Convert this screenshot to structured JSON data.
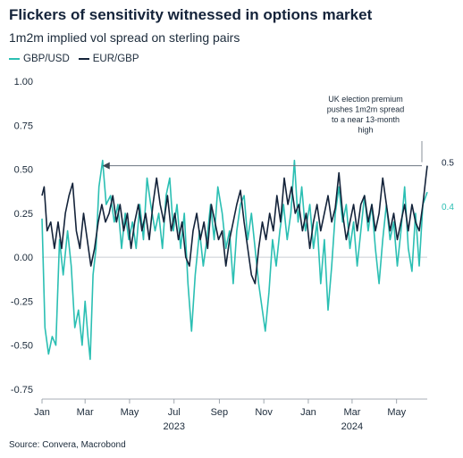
{
  "chart_data": {
    "type": "line",
    "title": "Flickers of sensitivity witnessed in options market",
    "subtitle": "1m2m implied vol spread on sterling pairs",
    "ylim": [
      -0.75,
      1.0
    ],
    "yticks": [
      "1.00",
      "0.75",
      "0.50",
      "0.25",
      "0.00",
      "-0.25",
      "-0.50",
      "-0.75"
    ],
    "x_start": "2023-01-01",
    "x_end": "2024-06-12",
    "xticks": [
      {
        "label": "Jan",
        "date": "2023-01-01"
      },
      {
        "label": "Mar",
        "date": "2023-03-01"
      },
      {
        "label": "May",
        "date": "2023-05-01"
      },
      {
        "label": "Jul",
        "date": "2023-07-01"
      },
      {
        "label": "Sep",
        "date": "2023-09-01"
      },
      {
        "label": "Nov",
        "date": "2023-11-01"
      },
      {
        "label": "Jan",
        "date": "2024-01-01"
      },
      {
        "label": "Mar",
        "date": "2024-03-01"
      },
      {
        "label": "May",
        "date": "2024-05-01"
      }
    ],
    "year_labels": [
      {
        "label": "2023",
        "date": "2023-07-01"
      },
      {
        "label": "2024",
        "date": "2024-03-01"
      }
    ],
    "series": [
      {
        "name": "GBP/USD",
        "color": "#2bbfb3",
        "end_label": "0.4",
        "points": [
          [
            "2023-01-01",
            0.22
          ],
          [
            "2023-01-05",
            -0.4
          ],
          [
            "2023-01-10",
            -0.55
          ],
          [
            "2023-01-15",
            -0.45
          ],
          [
            "2023-01-20",
            -0.5
          ],
          [
            "2023-01-25",
            0.1
          ],
          [
            "2023-01-30",
            -0.1
          ],
          [
            "2023-02-05",
            0.15
          ],
          [
            "2023-02-10",
            -0.05
          ],
          [
            "2023-02-15",
            -0.4
          ],
          [
            "2023-02-20",
            -0.3
          ],
          [
            "2023-02-25",
            -0.5
          ],
          [
            "2023-03-01",
            -0.25
          ],
          [
            "2023-03-05",
            -0.45
          ],
          [
            "2023-03-08",
            -0.58
          ],
          [
            "2023-03-12",
            -0.1
          ],
          [
            "2023-03-16",
            0.05
          ],
          [
            "2023-03-20",
            0.4
          ],
          [
            "2023-03-25",
            0.55
          ],
          [
            "2023-03-30",
            0.3
          ],
          [
            "2023-04-05",
            0.35
          ],
          [
            "2023-04-10",
            0.2
          ],
          [
            "2023-04-15",
            0.3
          ],
          [
            "2023-04-20",
            0.05
          ],
          [
            "2023-04-25",
            0.25
          ],
          [
            "2023-04-30",
            0.1
          ],
          [
            "2023-05-05",
            0.2
          ],
          [
            "2023-05-10",
            0.05
          ],
          [
            "2023-05-15",
            0.3
          ],
          [
            "2023-05-20",
            0.1
          ],
          [
            "2023-05-25",
            0.45
          ],
          [
            "2023-05-30",
            0.3
          ],
          [
            "2023-06-05",
            0.15
          ],
          [
            "2023-06-10",
            0.25
          ],
          [
            "2023-06-15",
            0.05
          ],
          [
            "2023-06-20",
            0.35
          ],
          [
            "2023-06-25",
            0.45
          ],
          [
            "2023-06-30",
            0.15
          ],
          [
            "2023-07-05",
            0.3
          ],
          [
            "2023-07-10",
            0.05
          ],
          [
            "2023-07-15",
            0.25
          ],
          [
            "2023-07-20",
            -0.15
          ],
          [
            "2023-07-25",
            -0.42
          ],
          [
            "2023-07-30",
            -0.1
          ],
          [
            "2023-08-05",
            0.15
          ],
          [
            "2023-08-10",
            -0.05
          ],
          [
            "2023-08-15",
            0.1
          ],
          [
            "2023-08-20",
            0.3
          ],
          [
            "2023-08-25",
            0.1
          ],
          [
            "2023-08-30",
            0.4
          ],
          [
            "2023-09-05",
            0.25
          ],
          [
            "2023-09-10",
            0.05
          ],
          [
            "2023-09-15",
            0.15
          ],
          [
            "2023-09-20",
            -0.15
          ],
          [
            "2023-09-25",
            0.15
          ],
          [
            "2023-09-30",
            0.3
          ],
          [
            "2023-10-05",
            0.35
          ],
          [
            "2023-10-10",
            0.1
          ],
          [
            "2023-10-15",
            0.25
          ],
          [
            "2023-10-20",
            0.05
          ],
          [
            "2023-10-25",
            -0.15
          ],
          [
            "2023-10-30",
            -0.3
          ],
          [
            "2023-11-03",
            -0.42
          ],
          [
            "2023-11-08",
            -0.2
          ],
          [
            "2023-11-13",
            0.1
          ],
          [
            "2023-11-18",
            -0.05
          ],
          [
            "2023-11-23",
            0.15
          ],
          [
            "2023-11-28",
            0.3
          ],
          [
            "2023-12-03",
            0.1
          ],
          [
            "2023-12-08",
            0.25
          ],
          [
            "2023-12-13",
            0.55
          ],
          [
            "2023-12-18",
            0.2
          ],
          [
            "2023-12-23",
            0.4
          ],
          [
            "2023-12-28",
            0.15
          ],
          [
            "2024-01-03",
            0.3
          ],
          [
            "2024-01-08",
            0.05
          ],
          [
            "2024-01-13",
            0.2
          ],
          [
            "2024-01-18",
            -0.15
          ],
          [
            "2024-01-23",
            0.1
          ],
          [
            "2024-01-28",
            -0.3
          ],
          [
            "2024-02-02",
            -0.05
          ],
          [
            "2024-02-07",
            0.25
          ],
          [
            "2024-02-12",
            0.4
          ],
          [
            "2024-02-17",
            0.2
          ],
          [
            "2024-02-22",
            0.3
          ],
          [
            "2024-02-27",
            0.05
          ],
          [
            "2024-03-03",
            0.2
          ],
          [
            "2024-03-08",
            -0.05
          ],
          [
            "2024-03-13",
            0.15
          ],
          [
            "2024-03-18",
            0.35
          ],
          [
            "2024-03-23",
            0.15
          ],
          [
            "2024-03-28",
            0.3
          ],
          [
            "2024-04-02",
            0.05
          ],
          [
            "2024-04-07",
            -0.15
          ],
          [
            "2024-04-12",
            0.1
          ],
          [
            "2024-04-17",
            0.3
          ],
          [
            "2024-04-22",
            0.1
          ],
          [
            "2024-04-27",
            0.2
          ],
          [
            "2024-05-02",
            -0.05
          ],
          [
            "2024-05-07",
            0.15
          ],
          [
            "2024-05-12",
            0.4
          ],
          [
            "2024-05-17",
            0.05
          ],
          [
            "2024-05-22",
            -0.08
          ],
          [
            "2024-05-27",
            0.25
          ],
          [
            "2024-06-01",
            -0.05
          ],
          [
            "2024-06-06",
            0.3
          ],
          [
            "2024-06-12",
            0.37
          ]
        ]
      },
      {
        "name": "EUR/GBP",
        "color": "#14233a",
        "end_label": "0.5",
        "points": [
          [
            "2023-01-01",
            0.35
          ],
          [
            "2023-01-04",
            0.4
          ],
          [
            "2023-01-08",
            0.15
          ],
          [
            "2023-01-13",
            0.2
          ],
          [
            "2023-01-18",
            0.05
          ],
          [
            "2023-01-23",
            0.2
          ],
          [
            "2023-01-28",
            0.05
          ],
          [
            "2023-02-02",
            0.25
          ],
          [
            "2023-02-07",
            0.35
          ],
          [
            "2023-02-12",
            0.42
          ],
          [
            "2023-02-17",
            0.15
          ],
          [
            "2023-02-22",
            0.05
          ],
          [
            "2023-02-27",
            0.25
          ],
          [
            "2023-03-04",
            0.1
          ],
          [
            "2023-03-09",
            -0.05
          ],
          [
            "2023-03-14",
            0.05
          ],
          [
            "2023-03-19",
            0.2
          ],
          [
            "2023-03-24",
            0.3
          ],
          [
            "2023-03-29",
            0.2
          ],
          [
            "2023-04-03",
            0.25
          ],
          [
            "2023-04-08",
            0.35
          ],
          [
            "2023-04-13",
            0.2
          ],
          [
            "2023-04-18",
            0.3
          ],
          [
            "2023-04-23",
            0.15
          ],
          [
            "2023-04-28",
            0.25
          ],
          [
            "2023-05-03",
            0.05
          ],
          [
            "2023-05-08",
            0.2
          ],
          [
            "2023-05-13",
            0.3
          ],
          [
            "2023-05-18",
            0.15
          ],
          [
            "2023-05-23",
            0.25
          ],
          [
            "2023-05-28",
            0.1
          ],
          [
            "2023-06-02",
            0.3
          ],
          [
            "2023-06-07",
            0.45
          ],
          [
            "2023-06-12",
            0.3
          ],
          [
            "2023-06-17",
            0.2
          ],
          [
            "2023-06-22",
            0.35
          ],
          [
            "2023-06-27",
            0.15
          ],
          [
            "2023-07-02",
            0.25
          ],
          [
            "2023-07-07",
            0.1
          ],
          [
            "2023-07-12",
            0.2
          ],
          [
            "2023-07-17",
            0.0
          ],
          [
            "2023-07-22",
            -0.05
          ],
          [
            "2023-07-27",
            0.15
          ],
          [
            "2023-08-01",
            0.25
          ],
          [
            "2023-08-06",
            0.1
          ],
          [
            "2023-08-11",
            0.2
          ],
          [
            "2023-08-16",
            0.05
          ],
          [
            "2023-08-21",
            0.3
          ],
          [
            "2023-08-26",
            0.2
          ],
          [
            "2023-08-31",
            0.1
          ],
          [
            "2023-09-05",
            0.15
          ],
          [
            "2023-09-10",
            -0.05
          ],
          [
            "2023-09-15",
            0.1
          ],
          [
            "2023-09-20",
            0.2
          ],
          [
            "2023-09-25",
            0.3
          ],
          [
            "2023-09-30",
            0.38
          ],
          [
            "2023-10-05",
            0.2
          ],
          [
            "2023-10-10",
            0.05
          ],
          [
            "2023-10-15",
            -0.1
          ],
          [
            "2023-10-20",
            -0.15
          ],
          [
            "2023-10-25",
            0.05
          ],
          [
            "2023-10-30",
            0.2
          ],
          [
            "2023-11-04",
            0.1
          ],
          [
            "2023-11-09",
            0.25
          ],
          [
            "2023-11-14",
            0.15
          ],
          [
            "2023-11-19",
            0.35
          ],
          [
            "2023-11-24",
            0.2
          ],
          [
            "2023-11-29",
            0.45
          ],
          [
            "2023-12-04",
            0.3
          ],
          [
            "2023-12-09",
            0.4
          ],
          [
            "2023-12-14",
            0.25
          ],
          [
            "2023-12-19",
            0.3
          ],
          [
            "2023-12-24",
            0.15
          ],
          [
            "2023-12-29",
            0.25
          ],
          [
            "2024-01-03",
            0.05
          ],
          [
            "2024-01-08",
            0.2
          ],
          [
            "2024-01-13",
            0.3
          ],
          [
            "2024-01-18",
            0.15
          ],
          [
            "2024-01-23",
            0.25
          ],
          [
            "2024-01-28",
            0.35
          ],
          [
            "2024-02-02",
            0.2
          ],
          [
            "2024-02-07",
            0.28
          ],
          [
            "2024-02-12",
            0.48
          ],
          [
            "2024-02-17",
            0.25
          ],
          [
            "2024-02-22",
            0.1
          ],
          [
            "2024-02-27",
            0.2
          ],
          [
            "2024-03-03",
            0.3
          ],
          [
            "2024-03-08",
            0.15
          ],
          [
            "2024-03-13",
            0.3
          ],
          [
            "2024-03-18",
            0.35
          ],
          [
            "2024-03-23",
            0.2
          ],
          [
            "2024-03-28",
            0.3
          ],
          [
            "2024-04-02",
            0.15
          ],
          [
            "2024-04-07",
            0.25
          ],
          [
            "2024-04-12",
            0.45
          ],
          [
            "2024-04-17",
            0.3
          ],
          [
            "2024-04-22",
            0.15
          ],
          [
            "2024-04-27",
            0.25
          ],
          [
            "2024-05-02",
            0.1
          ],
          [
            "2024-05-07",
            0.2
          ],
          [
            "2024-05-12",
            0.3
          ],
          [
            "2024-05-17",
            0.15
          ],
          [
            "2024-05-22",
            0.3
          ],
          [
            "2024-05-27",
            0.2
          ],
          [
            "2024-06-01",
            0.15
          ],
          [
            "2024-06-06",
            0.3
          ],
          [
            "2024-06-10",
            0.45
          ],
          [
            "2024-06-12",
            0.52
          ]
        ]
      }
    ],
    "annotation": {
      "lines": [
        "UK election premium",
        "pushes 1m2m spread",
        "to a near 13-month",
        "high"
      ],
      "arrow_from": [
        "2024-06-12",
        0.52
      ],
      "arrow_to": [
        "2023-03-25",
        0.52
      ]
    },
    "grid": false,
    "legend_position": "top-left"
  },
  "source": "Source: Convera, Macrobond"
}
